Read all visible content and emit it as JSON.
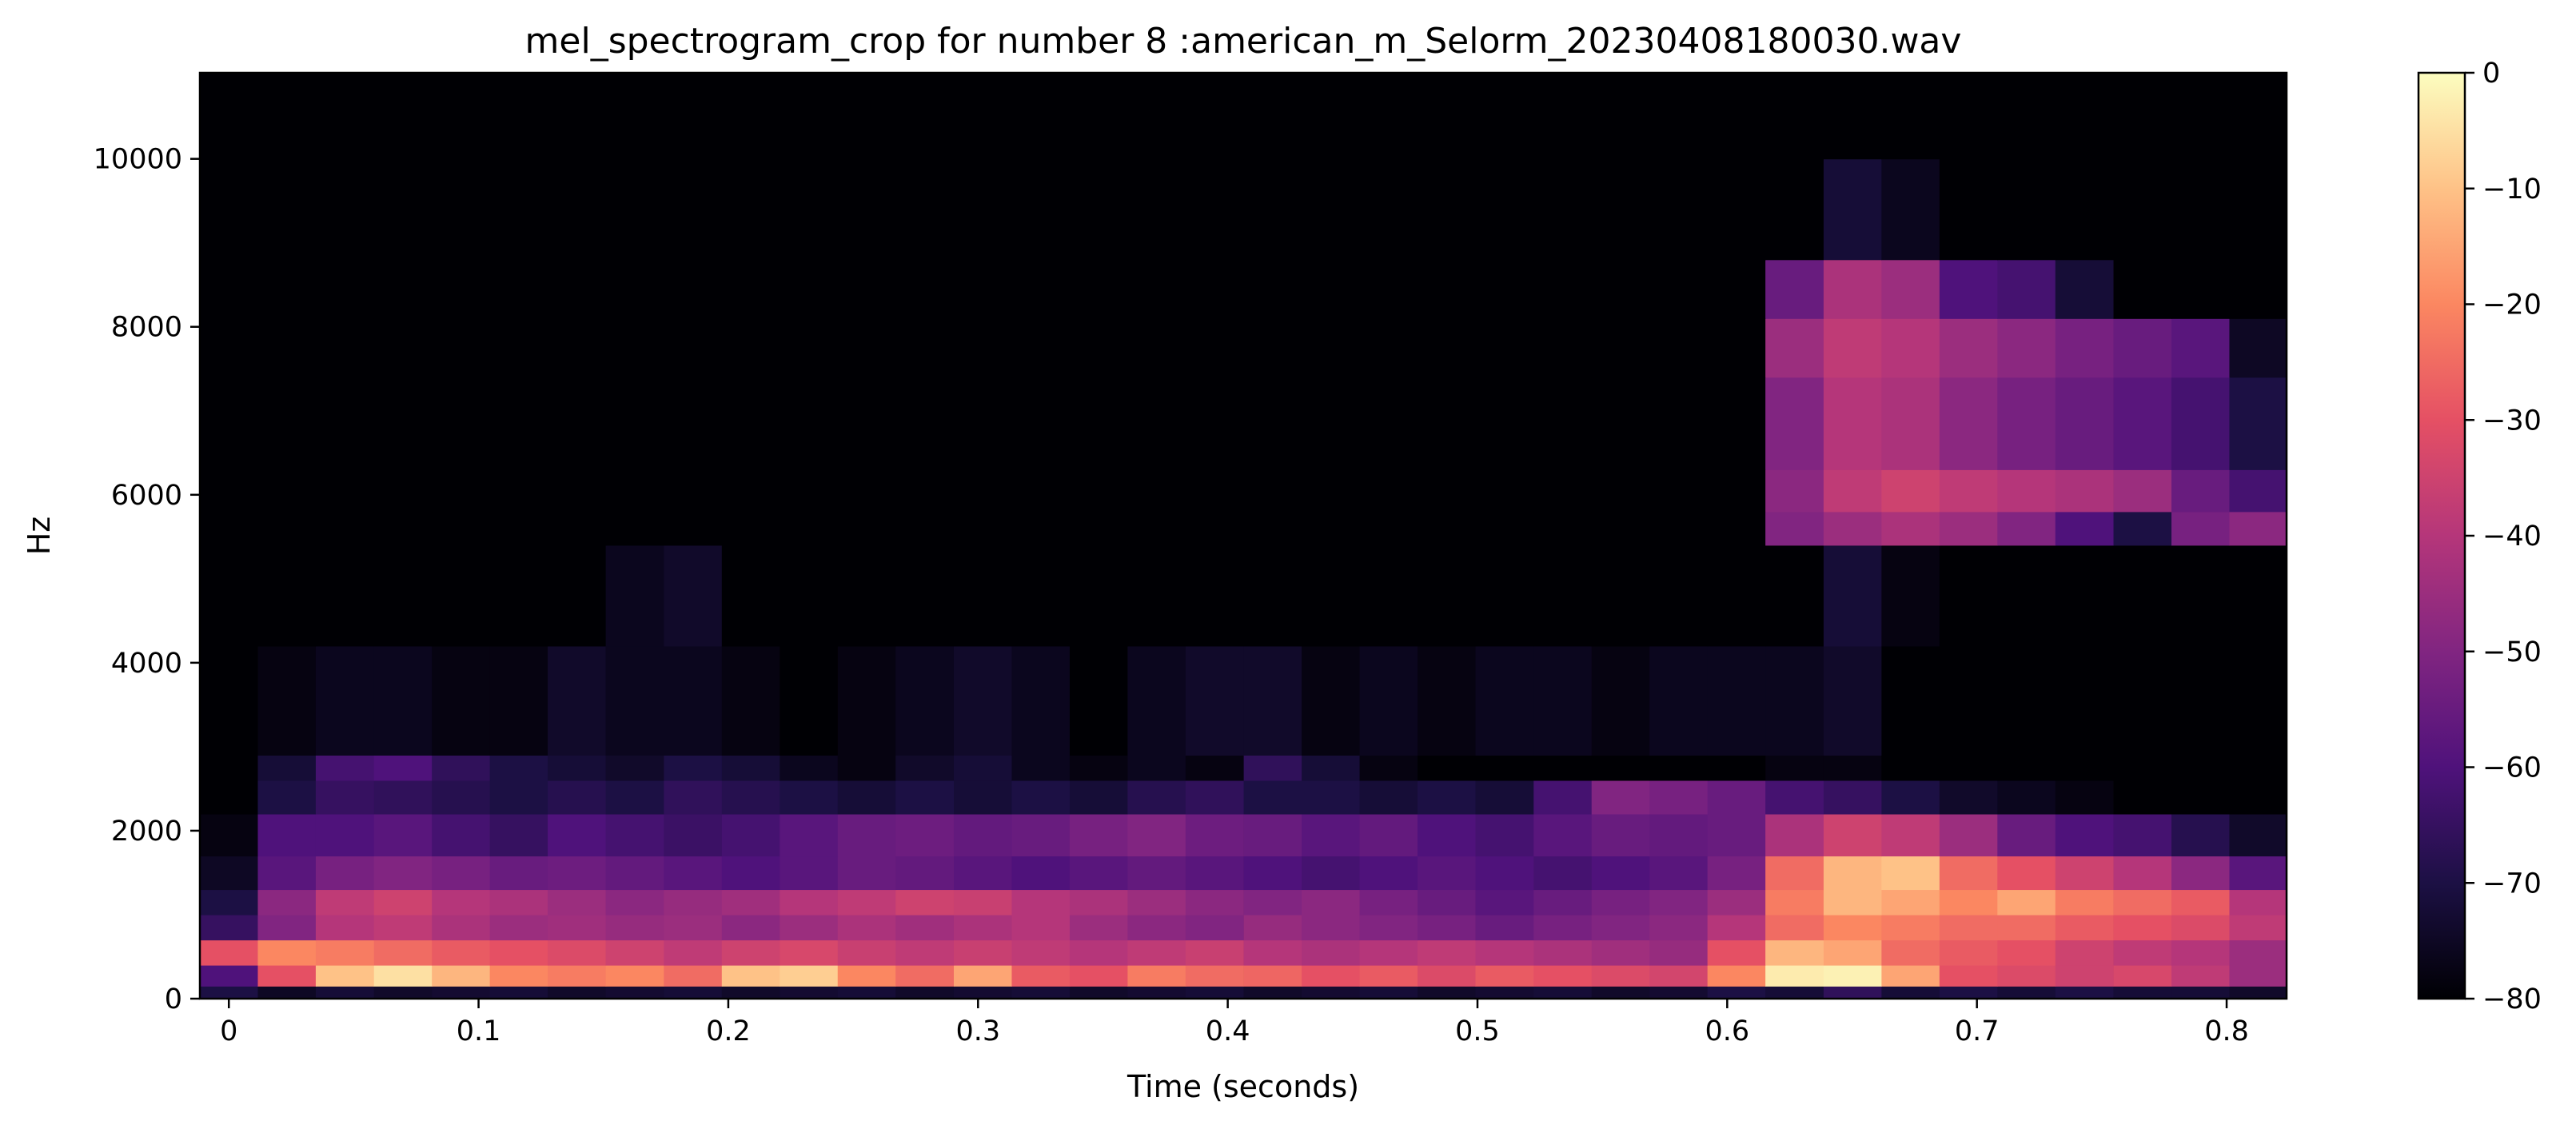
{
  "chart_data": {
    "type": "heatmap",
    "title": "mel_spectrogram_crop for number 8 :american_m_Selorm_20230408180030.wav",
    "xlabel": "Time (seconds)",
    "ylabel": "Hz",
    "x_ticks": [
      "0",
      "0.1",
      "0.2",
      "0.3",
      "0.4",
      "0.5",
      "0.6",
      "0.7",
      "0.8"
    ],
    "y_ticks": [
      "0",
      "2000",
      "4000",
      "6000",
      "8000",
      "10000"
    ],
    "xlim": [
      -0.0116,
      0.824
    ],
    "ylim": [
      0,
      11025
    ],
    "colorbar": {
      "ticks": [
        "0",
        "−10",
        "−20",
        "−30",
        "−40",
        "−50",
        "−60",
        "−70",
        "−80"
      ],
      "range": [
        -80,
        0
      ],
      "colormap": "magma"
    },
    "time_frames": [
      0.0,
      0.0232,
      0.0464,
      0.0697,
      0.0929,
      0.1161,
      0.1393,
      0.1625,
      0.1858,
      0.209,
      0.2322,
      0.2554,
      0.2786,
      0.3019,
      0.3251,
      0.3483,
      0.3715,
      0.3947,
      0.418,
      0.4412,
      0.4644,
      0.4876,
      0.5108,
      0.5341,
      0.5573,
      0.5805,
      0.6037,
      0.6269,
      0.6502,
      0.6734,
      0.6966,
      0.7198,
      0.743,
      0.7663,
      0.7895,
      0.8127
    ],
    "bands": [
      {
        "name": "f0",
        "hz_min": 0,
        "hz_max": 150,
        "db": [
          -70,
          -75,
          -72,
          -74,
          -73,
          -72,
          -74,
          -73,
          -72,
          -74,
          -73,
          -72,
          -74,
          -73,
          -72,
          -74,
          -73,
          -72,
          -74,
          -73,
          -72,
          -74,
          -73,
          -72,
          -74,
          -73,
          -70,
          -72,
          -66,
          -72,
          -70,
          -72,
          -70,
          -72,
          -72,
          -74
        ]
      },
      {
        "name": "f1",
        "hz_min": 150,
        "hz_max": 400,
        "db": [
          -60,
          -30,
          -10,
          -5,
          -12,
          -20,
          -22,
          -20,
          -25,
          -10,
          -8,
          -20,
          -25,
          -15,
          -28,
          -30,
          -22,
          -25,
          -26,
          -30,
          -28,
          -32,
          -28,
          -30,
          -32,
          -34,
          -20,
          -3,
          -2,
          -15,
          -30,
          -32,
          -35,
          -33,
          -38,
          -45
        ]
      },
      {
        "name": "f2",
        "hz_min": 400,
        "hz_max": 700,
        "db": [
          -30,
          -20,
          -22,
          -25,
          -28,
          -30,
          -32,
          -35,
          -38,
          -35,
          -33,
          -36,
          -38,
          -36,
          -38,
          -40,
          -38,
          -36,
          -40,
          -42,
          -40,
          -38,
          -40,
          -42,
          -44,
          -46,
          -30,
          -12,
          -15,
          -25,
          -28,
          -30,
          -35,
          -38,
          -40,
          -45
        ]
      },
      {
        "name": "f3",
        "hz_min": 700,
        "hz_max": 1000,
        "db": [
          -65,
          -50,
          -40,
          -38,
          -42,
          -45,
          -44,
          -46,
          -45,
          -48,
          -45,
          -42,
          -44,
          -42,
          -40,
          -45,
          -48,
          -50,
          -46,
          -48,
          -50,
          -52,
          -55,
          -52,
          -50,
          -48,
          -40,
          -25,
          -20,
          -22,
          -25,
          -25,
          -28,
          -30,
          -32,
          -38
        ]
      },
      {
        "name": "f4",
        "hz_min": 1000,
        "hz_max": 1300,
        "db": [
          -70,
          -48,
          -38,
          -35,
          -40,
          -42,
          -45,
          -48,
          -46,
          -44,
          -40,
          -38,
          -35,
          -36,
          -40,
          -42,
          -45,
          -48,
          -50,
          -48,
          -52,
          -55,
          -58,
          -55,
          -52,
          -50,
          -45,
          -22,
          -12,
          -15,
          -20,
          -15,
          -22,
          -25,
          -28,
          -40
        ]
      },
      {
        "name": "f5",
        "hz_min": 1300,
        "hz_max": 1700,
        "db": [
          -75,
          -58,
          -52,
          -50,
          -52,
          -55,
          -54,
          -56,
          -58,
          -60,
          -58,
          -55,
          -56,
          -58,
          -60,
          -58,
          -56,
          -58,
          -60,
          -62,
          -60,
          -58,
          -60,
          -62,
          -60,
          -58,
          -52,
          -25,
          -12,
          -10,
          -25,
          -30,
          -35,
          -40,
          -48,
          -58
        ]
      },
      {
        "name": "f6",
        "hz_min": 1700,
        "hz_max": 2200,
        "db": [
          -78,
          -60,
          -60,
          -58,
          -62,
          -65,
          -60,
          -62,
          -64,
          -62,
          -58,
          -55,
          -54,
          -56,
          -55,
          -52,
          -50,
          -54,
          -55,
          -58,
          -56,
          -60,
          -62,
          -58,
          -55,
          -56,
          -55,
          -42,
          -35,
          -38,
          -45,
          -55,
          -60,
          -62,
          -68,
          -74
        ]
      },
      {
        "name": "f7",
        "hz_min": 2200,
        "hz_max": 2600,
        "db": [
          -80,
          -70,
          -65,
          -66,
          -68,
          -70,
          -68,
          -70,
          -66,
          -68,
          -70,
          -72,
          -70,
          -72,
          -70,
          -72,
          -68,
          -66,
          -70,
          -70,
          -72,
          -70,
          -72,
          -62,
          -50,
          -52,
          -55,
          -62,
          -65,
          -70,
          -74,
          -76,
          -78,
          -80,
          -80,
          -80
        ]
      },
      {
        "name": "f8",
        "hz_min": 2600,
        "hz_max": 2900,
        "db": [
          -80,
          -72,
          -62,
          -60,
          -66,
          -70,
          -72,
          -74,
          -70,
          -72,
          -76,
          -78,
          -74,
          -72,
          -76,
          -78,
          -76,
          -78,
          -66,
          -72,
          -78,
          -80,
          -80,
          -80,
          -80,
          -80,
          -80,
          -78,
          -78,
          -80,
          -80,
          -80,
          -80,
          -80,
          -80,
          -80
        ]
      },
      {
        "name": "f9",
        "hz_min": 2900,
        "hz_max": 4200,
        "db": [
          -80,
          -78,
          -76,
          -76,
          -78,
          -78,
          -74,
          -76,
          -76,
          -78,
          -80,
          -78,
          -76,
          -74,
          -76,
          -80,
          -76,
          -74,
          -74,
          -78,
          -76,
          -78,
          -76,
          -76,
          -78,
          -76,
          -76,
          -76,
          -74,
          -80,
          -80,
          -80,
          -80,
          -80,
          -80,
          -80
        ]
      },
      {
        "name": "f10",
        "hz_min": 4200,
        "hz_max": 5400,
        "db": [
          -80,
          -80,
          -80,
          -80,
          -80,
          -80,
          -80,
          -76,
          -74,
          -80,
          -80,
          -80,
          -80,
          -80,
          -80,
          -80,
          -80,
          -80,
          -80,
          -80,
          -80,
          -80,
          -80,
          -80,
          -80,
          -80,
          -80,
          -80,
          -72,
          -78,
          -80,
          -80,
          -80,
          -80,
          -80,
          -80
        ]
      },
      {
        "name": "f11",
        "hz_min": 5400,
        "hz_max": 5800,
        "db": [
          -80,
          -80,
          -80,
          -80,
          -80,
          -80,
          -80,
          -80,
          -80,
          -80,
          -80,
          -80,
          -80,
          -80,
          -80,
          -80,
          -80,
          -80,
          -80,
          -80,
          -80,
          -80,
          -80,
          -80,
          -80,
          -80,
          -80,
          -50,
          -45,
          -42,
          -45,
          -50,
          -60,
          -70,
          -52,
          -48
        ]
      },
      {
        "name": "f12",
        "hz_min": 5800,
        "hz_max": 6300,
        "db": [
          -80,
          -80,
          -80,
          -80,
          -80,
          -80,
          -80,
          -80,
          -80,
          -80,
          -80,
          -80,
          -80,
          -80,
          -80,
          -80,
          -80,
          -80,
          -80,
          -80,
          -80,
          -80,
          -80,
          -80,
          -80,
          -80,
          -80,
          -48,
          -38,
          -35,
          -38,
          -40,
          -42,
          -45,
          -55,
          -62
        ]
      },
      {
        "name": "f13",
        "hz_min": 6300,
        "hz_max": 7400,
        "db": [
          -80,
          -80,
          -80,
          -80,
          -80,
          -80,
          -80,
          -80,
          -80,
          -80,
          -80,
          -80,
          -80,
          -80,
          -80,
          -80,
          -80,
          -80,
          -80,
          -80,
          -80,
          -80,
          -80,
          -80,
          -80,
          -80,
          -80,
          -50,
          -40,
          -42,
          -48,
          -52,
          -55,
          -58,
          -62,
          -70
        ]
      },
      {
        "name": "f14",
        "hz_min": 7400,
        "hz_max": 8100,
        "db": [
          -80,
          -80,
          -80,
          -80,
          -80,
          -80,
          -80,
          -80,
          -80,
          -80,
          -80,
          -80,
          -80,
          -80,
          -80,
          -80,
          -80,
          -80,
          -80,
          -80,
          -80,
          -80,
          -80,
          -80,
          -80,
          -80,
          -80,
          -45,
          -38,
          -40,
          -45,
          -48,
          -52,
          -55,
          -58,
          -75
        ]
      },
      {
        "name": "f15",
        "hz_min": 8100,
        "hz_max": 8800,
        "db": [
          -80,
          -80,
          -80,
          -80,
          -80,
          -80,
          -80,
          -80,
          -80,
          -80,
          -80,
          -80,
          -80,
          -80,
          -80,
          -80,
          -80,
          -80,
          -80,
          -80,
          -80,
          -80,
          -80,
          -80,
          -80,
          -80,
          -80,
          -55,
          -42,
          -45,
          -60,
          -62,
          -72,
          -80,
          -80,
          -80
        ]
      },
      {
        "name": "f16",
        "hz_min": 8800,
        "hz_max": 10000,
        "db": [
          -80,
          -80,
          -80,
          -80,
          -80,
          -80,
          -80,
          -80,
          -80,
          -80,
          -80,
          -80,
          -80,
          -80,
          -80,
          -80,
          -80,
          -80,
          -80,
          -80,
          -80,
          -80,
          -80,
          -80,
          -80,
          -80,
          -80,
          -80,
          -72,
          -76,
          -80,
          -80,
          -80,
          -80,
          -80,
          -80
        ]
      },
      {
        "name": "f17",
        "hz_min": 10000,
        "hz_max": 11025,
        "db": [
          -80,
          -80,
          -80,
          -80,
          -80,
          -80,
          -80,
          -80,
          -80,
          -80,
          -80,
          -80,
          -80,
          -80,
          -80,
          -80,
          -80,
          -80,
          -80,
          -80,
          -80,
          -80,
          -80,
          -80,
          -80,
          -80,
          -80,
          -80,
          -80,
          -80,
          -80,
          -80,
          -80,
          -80,
          -80,
          -80
        ]
      }
    ]
  }
}
